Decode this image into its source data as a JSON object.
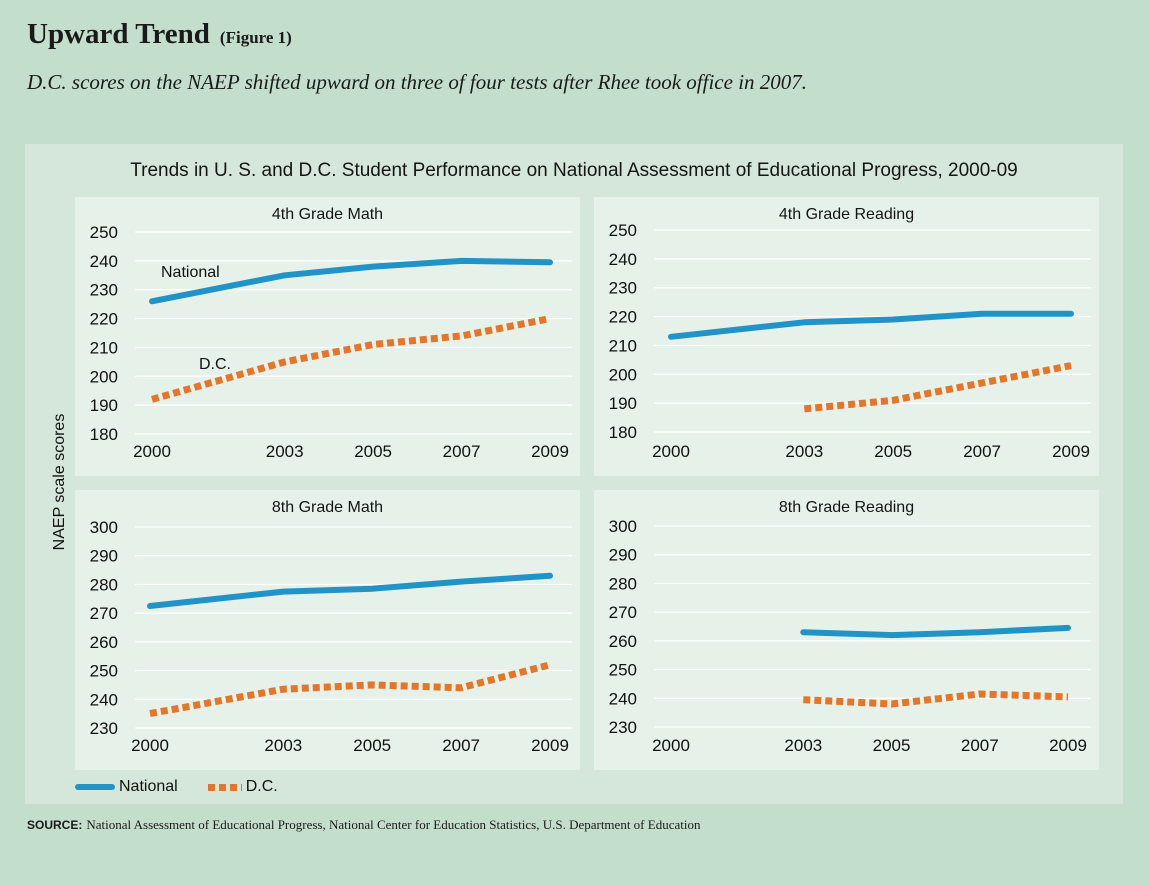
{
  "header": {
    "title": "Upward Trend",
    "figure_tag": "(Figure 1)",
    "subtitle": "D.C. scores on the NAEP shifted upward on three of four tests after Rhee took office in 2007."
  },
  "colors": {
    "page_bg": "#c4decc",
    "panel_bg": "#e6f1ea",
    "national": "#2193c7",
    "dc": "#e4762a"
  },
  "chart_heading": "Trends in U. S. and D.C. Student Performance on National Assessment of Educational Progress, 2000-09",
  "y_axis_title": "NAEP scale scores",
  "legend": {
    "national": "National",
    "dc": "D.C."
  },
  "source": {
    "label": "SOURCE:",
    "text": "National Assessment of Educational Progress, National Center for Education Statistics, U.S. Department of Education"
  },
  "chart_data": [
    {
      "type": "line",
      "title": "4th Grade Math",
      "x": [
        2000,
        2003,
        2005,
        2007,
        2009
      ],
      "x_tick_labels": [
        "2000",
        "2003",
        "2005",
        "2007",
        "2009"
      ],
      "ylim": [
        180,
        250
      ],
      "y_ticks": [
        180,
        190,
        200,
        210,
        220,
        230,
        240,
        250
      ],
      "grid": true,
      "annotations": [
        "National",
        "D.C."
      ],
      "series": [
        {
          "name": "National",
          "key": "national",
          "x": [
            2000,
            2003,
            2005,
            2007,
            2009
          ],
          "values": [
            226,
            235,
            238,
            240,
            239.5
          ]
        },
        {
          "name": "D.C.",
          "key": "dc",
          "x": [
            2000,
            2003,
            2005,
            2007,
            2009
          ],
          "values": [
            192,
            205,
            211,
            214,
            220
          ]
        }
      ]
    },
    {
      "type": "line",
      "title": "4th Grade Reading",
      "x": [
        2000,
        2003,
        2005,
        2007,
        2009
      ],
      "x_tick_labels": [
        "2000",
        "2003",
        "2005",
        "2007",
        "2009"
      ],
      "ylim": [
        180,
        250
      ],
      "y_ticks": [
        180,
        190,
        200,
        210,
        220,
        230,
        240,
        250
      ],
      "grid": true,
      "series": [
        {
          "name": "National",
          "key": "national",
          "x": [
            2000,
            2003,
            2005,
            2007,
            2009
          ],
          "values": [
            213,
            218,
            219,
            221,
            221
          ]
        },
        {
          "name": "D.C.",
          "key": "dc",
          "x": [
            2003,
            2005,
            2007,
            2009
          ],
          "values": [
            188,
            191,
            197,
            203
          ]
        }
      ]
    },
    {
      "type": "line",
      "title": "8th Grade Math",
      "x": [
        2000,
        2003,
        2005,
        2007,
        2009
      ],
      "x_tick_labels": [
        "2000",
        "2003",
        "2005",
        "2007",
        "2009"
      ],
      "ylim": [
        230,
        300
      ],
      "y_ticks": [
        230,
        240,
        250,
        260,
        270,
        280,
        290,
        300
      ],
      "grid": true,
      "series": [
        {
          "name": "National",
          "key": "national",
          "x": [
            2000,
            2003,
            2005,
            2007,
            2009
          ],
          "values": [
            272.5,
            277.5,
            278.5,
            281,
            283
          ]
        },
        {
          "name": "D.C.",
          "key": "dc",
          "x": [
            2000,
            2003,
            2005,
            2007,
            2009
          ],
          "values": [
            235,
            243.5,
            245,
            244,
            252
          ]
        }
      ]
    },
    {
      "type": "line",
      "title": "8th Grade Reading",
      "x": [
        2000,
        2003,
        2005,
        2007,
        2009
      ],
      "x_tick_labels": [
        "2000",
        "2003",
        "2005",
        "2007",
        "2009"
      ],
      "ylim": [
        230,
        300
      ],
      "y_ticks": [
        230,
        240,
        250,
        260,
        270,
        280,
        290,
        300
      ],
      "grid": true,
      "series": [
        {
          "name": "National",
          "key": "national",
          "x": [
            2003,
            2005,
            2007,
            2009
          ],
          "values": [
            263,
            262,
            263,
            264.5
          ]
        },
        {
          "name": "D.C.",
          "key": "dc",
          "x": [
            2003,
            2005,
            2007,
            2009
          ],
          "values": [
            239.5,
            238,
            241.5,
            240.5
          ]
        }
      ]
    }
  ]
}
